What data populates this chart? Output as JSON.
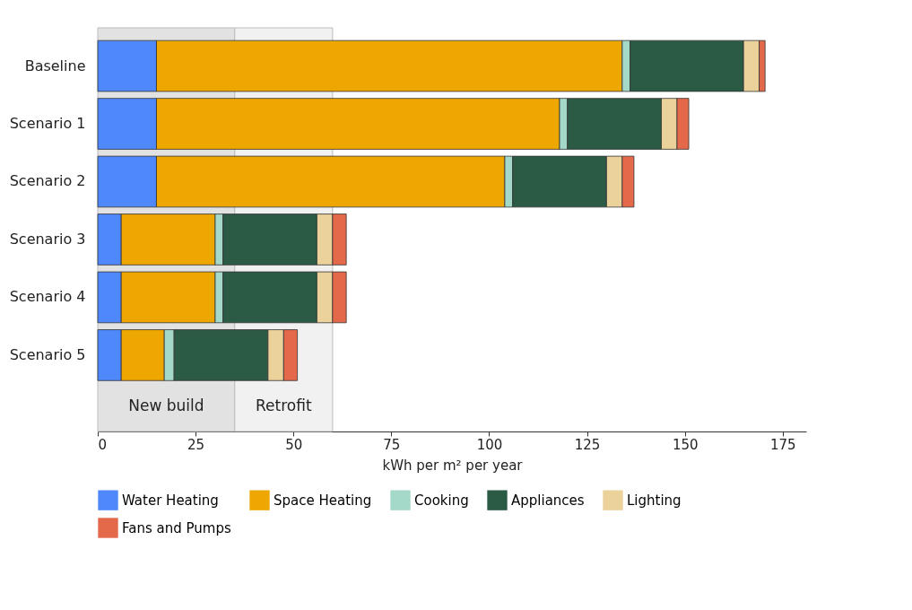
{
  "chart_data": {
    "type": "bar",
    "orientation": "horizontal",
    "stacked": true,
    "xlabel": "kWh per m² per year",
    "categories": [
      "Baseline",
      "Scenario 1",
      "Scenario 2",
      "Scenario 3",
      "Scenario 4",
      "Scenario 5"
    ],
    "series": [
      {
        "name": "Water Heating",
        "color": "#4f88fb",
        "values": [
          15,
          15,
          15,
          6,
          6,
          6
        ]
      },
      {
        "name": "Space Heating",
        "color": "#eea700",
        "values": [
          119,
          103,
          89,
          24,
          24,
          11
        ]
      },
      {
        "name": "Cooking",
        "color": "#a4d8c9",
        "values": [
          2,
          2,
          2,
          2,
          2,
          2.5
        ]
      },
      {
        "name": "Appliances",
        "color": "#2b5a45",
        "values": [
          29,
          24,
          24,
          24,
          24,
          24
        ]
      },
      {
        "name": "Lighting",
        "color": "#ebd19a",
        "values": [
          4,
          4,
          4,
          4,
          4,
          4
        ]
      },
      {
        "name": "Fans and Pumps",
        "color": "#e4694a",
        "values": [
          1.5,
          3,
          3,
          3.5,
          3.5,
          3.5
        ]
      }
    ],
    "bands": [
      {
        "axis": "x",
        "from": 0,
        "to": 35,
        "label": "New build",
        "color": "#e2e2e2"
      },
      {
        "axis": "x",
        "from": 35,
        "to": 60,
        "label": "Retrofit",
        "color": "#f1f1f1"
      }
    ],
    "xlim": [
      0,
      181
    ],
    "xticks": [
      0,
      25,
      50,
      75,
      100,
      125,
      150,
      175
    ],
    "grid": false,
    "legend": "bottom"
  }
}
